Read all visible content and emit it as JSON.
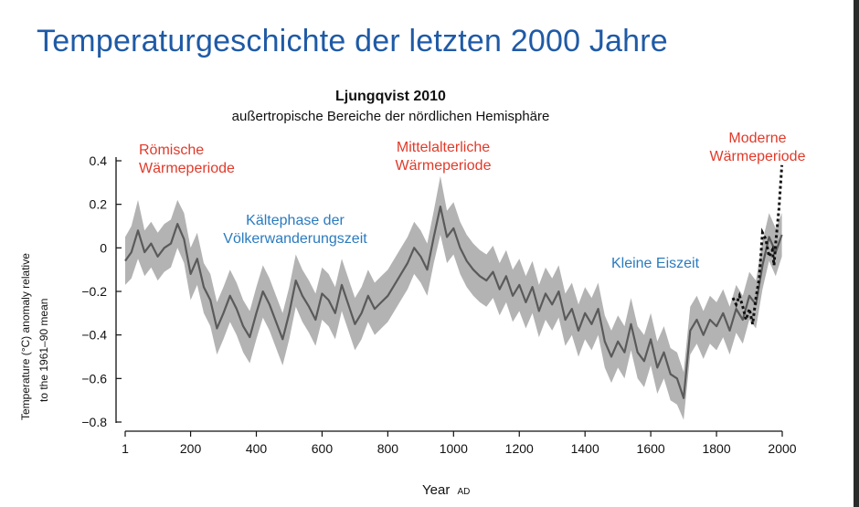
{
  "slide": {
    "title": "Temperaturgeschichte der letzten 2000 Jahre"
  },
  "colors": {
    "title": "#1f5aa6",
    "warm_label": "#e03a2a",
    "cold_label": "#2a7bbf",
    "band": "#b3b3b3",
    "line": "#5a5a5a",
    "instrumental": "#111111"
  },
  "chart_data": {
    "type": "line",
    "title": "Ljungqvist 2010",
    "subtitle": "außertropische Bereiche der nördlichen Hemisphäre",
    "xlabel": "Year",
    "xlabel_suffix": "AD",
    "ylabel_line1": "Temperature (°C) anomaly relative",
    "ylabel_line2": "to the 1961–90 mean",
    "xlim": [
      1,
      2000
    ],
    "ylim": [
      -0.8,
      0.4
    ],
    "x_ticks": [
      "1",
      "200",
      "400",
      "600",
      "800",
      "1000",
      "1200",
      "1400",
      "1600",
      "1800",
      "2000"
    ],
    "x_tick_values": [
      1,
      200,
      400,
      600,
      800,
      1000,
      1200,
      1400,
      1600,
      1800,
      2000
    ],
    "y_ticks": [
      "0.4",
      "0.2",
      "0",
      "−0.2",
      "−0.4",
      "−0.6",
      "−0.8"
    ],
    "y_tick_values": [
      0.4,
      0.2,
      0,
      -0.2,
      -0.4,
      -0.6,
      -0.8
    ],
    "series": [
      {
        "name": "Reconstruction (mean)",
        "x": [
          1,
          20,
          40,
          60,
          80,
          100,
          120,
          140,
          160,
          180,
          200,
          220,
          240,
          260,
          280,
          300,
          320,
          340,
          360,
          380,
          400,
          420,
          440,
          460,
          480,
          500,
          520,
          540,
          560,
          580,
          600,
          620,
          640,
          660,
          680,
          700,
          720,
          740,
          760,
          780,
          800,
          820,
          840,
          860,
          880,
          900,
          920,
          940,
          960,
          980,
          1000,
          1020,
          1040,
          1060,
          1080,
          1100,
          1120,
          1140,
          1160,
          1180,
          1200,
          1220,
          1240,
          1260,
          1280,
          1300,
          1320,
          1340,
          1360,
          1380,
          1400,
          1420,
          1440,
          1460,
          1480,
          1500,
          1520,
          1540,
          1560,
          1580,
          1600,
          1620,
          1640,
          1660,
          1680,
          1700,
          1720,
          1740,
          1760,
          1780,
          1800,
          1820,
          1840,
          1860,
          1880,
          1900,
          1920,
          1940,
          1960,
          1980,
          1999
        ],
        "values": [
          -0.06,
          -0.02,
          0.08,
          -0.02,
          0.02,
          -0.04,
          0.0,
          0.02,
          0.11,
          0.04,
          -0.12,
          -0.05,
          -0.18,
          -0.24,
          -0.37,
          -0.3,
          -0.22,
          -0.28,
          -0.36,
          -0.41,
          -0.3,
          -0.2,
          -0.26,
          -0.34,
          -0.42,
          -0.3,
          -0.15,
          -0.22,
          -0.27,
          -0.33,
          -0.21,
          -0.24,
          -0.3,
          -0.17,
          -0.26,
          -0.35,
          -0.3,
          -0.22,
          -0.28,
          -0.25,
          -0.22,
          -0.17,
          -0.12,
          -0.07,
          0.0,
          -0.04,
          -0.1,
          0.05,
          0.19,
          0.05,
          0.09,
          0.0,
          -0.06,
          -0.1,
          -0.13,
          -0.15,
          -0.11,
          -0.19,
          -0.13,
          -0.22,
          -0.17,
          -0.25,
          -0.18,
          -0.29,
          -0.21,
          -0.26,
          -0.2,
          -0.33,
          -0.28,
          -0.38,
          -0.3,
          -0.35,
          -0.28,
          -0.43,
          -0.5,
          -0.43,
          -0.48,
          -0.35,
          -0.48,
          -0.52,
          -0.42,
          -0.55,
          -0.48,
          -0.58,
          -0.6,
          -0.69,
          -0.38,
          -0.33,
          -0.4,
          -0.33,
          -0.36,
          -0.3,
          -0.38,
          -0.28,
          -0.33,
          -0.22,
          -0.26,
          -0.08,
          0.05,
          -0.02,
          0.06
        ]
      },
      {
        "name": "Uncertainty range (upper)",
        "values": [
          0.05,
          0.1,
          0.22,
          0.08,
          0.12,
          0.07,
          0.11,
          0.13,
          0.22,
          0.16,
          0.0,
          0.07,
          -0.07,
          -0.12,
          -0.25,
          -0.18,
          -0.1,
          -0.16,
          -0.24,
          -0.29,
          -0.18,
          -0.08,
          -0.14,
          -0.22,
          -0.3,
          -0.18,
          -0.03,
          -0.1,
          -0.15,
          -0.21,
          -0.09,
          -0.12,
          -0.18,
          -0.05,
          -0.14,
          -0.23,
          -0.18,
          -0.1,
          -0.16,
          -0.13,
          -0.1,
          -0.05,
          0.0,
          0.05,
          0.12,
          0.08,
          0.02,
          0.17,
          0.33,
          0.17,
          0.21,
          0.12,
          0.06,
          0.02,
          -0.01,
          -0.03,
          0.01,
          -0.07,
          -0.01,
          -0.1,
          -0.05,
          -0.13,
          -0.06,
          -0.17,
          -0.09,
          -0.14,
          -0.08,
          -0.21,
          -0.16,
          -0.26,
          -0.18,
          -0.23,
          -0.16,
          -0.31,
          -0.38,
          -0.31,
          -0.36,
          -0.23,
          -0.36,
          -0.4,
          -0.3,
          -0.43,
          -0.36,
          -0.46,
          -0.48,
          -0.57,
          -0.27,
          -0.22,
          -0.29,
          -0.22,
          -0.25,
          -0.19,
          -0.27,
          -0.17,
          -0.22,
          -0.11,
          -0.15,
          0.03,
          0.16,
          0.09,
          0.16
        ]
      },
      {
        "name": "Uncertainty range (lower)",
        "values": [
          -0.17,
          -0.14,
          -0.05,
          -0.13,
          -0.09,
          -0.15,
          -0.11,
          -0.09,
          0.0,
          -0.07,
          -0.24,
          -0.17,
          -0.3,
          -0.36,
          -0.49,
          -0.42,
          -0.34,
          -0.4,
          -0.48,
          -0.53,
          -0.42,
          -0.32,
          -0.38,
          -0.46,
          -0.54,
          -0.42,
          -0.27,
          -0.34,
          -0.39,
          -0.45,
          -0.33,
          -0.36,
          -0.42,
          -0.29,
          -0.38,
          -0.47,
          -0.42,
          -0.34,
          -0.4,
          -0.37,
          -0.34,
          -0.29,
          -0.24,
          -0.19,
          -0.12,
          -0.16,
          -0.22,
          -0.07,
          0.06,
          -0.07,
          -0.03,
          -0.12,
          -0.18,
          -0.22,
          -0.25,
          -0.27,
          -0.23,
          -0.31,
          -0.25,
          -0.34,
          -0.29,
          -0.37,
          -0.3,
          -0.41,
          -0.33,
          -0.38,
          -0.32,
          -0.45,
          -0.4,
          -0.5,
          -0.42,
          -0.47,
          -0.4,
          -0.55,
          -0.62,
          -0.55,
          -0.6,
          -0.47,
          -0.6,
          -0.64,
          -0.54,
          -0.67,
          -0.6,
          -0.7,
          -0.72,
          -0.79,
          -0.49,
          -0.44,
          -0.51,
          -0.44,
          -0.47,
          -0.41,
          -0.49,
          -0.39,
          -0.44,
          -0.33,
          -0.37,
          -0.19,
          -0.06,
          -0.13,
          -0.04
        ]
      },
      {
        "name": "Instrumental record",
        "style": "dotted",
        "x": [
          1850,
          1860,
          1870,
          1880,
          1890,
          1900,
          1910,
          1915,
          1920,
          1930,
          1940,
          1950,
          1960,
          1970,
          1975,
          1980,
          1990,
          1999
        ],
        "values": [
          -0.23,
          -0.26,
          -0.22,
          -0.27,
          -0.33,
          -0.28,
          -0.35,
          -0.29,
          -0.23,
          -0.14,
          0.07,
          0.04,
          -0.04,
          -0.01,
          -0.08,
          0.02,
          0.18,
          0.38
        ]
      }
    ],
    "annotations": [
      {
        "id": "roman",
        "line1": "Römische",
        "line2": "Wärmeperiode",
        "kind": "warm"
      },
      {
        "id": "migration",
        "line1": "Kältephase der",
        "line2": "Völkerwanderungszeit",
        "kind": "cold"
      },
      {
        "id": "medieval",
        "line1": "Mittelalterliche",
        "line2": "Wärmeperiode",
        "kind": "warm"
      },
      {
        "id": "little-ice-age",
        "line1": "Kleine Eiszeit",
        "line2": "",
        "kind": "cold"
      },
      {
        "id": "modern",
        "line1": "Moderne",
        "line2": "Wärmeperiode",
        "kind": "warm"
      }
    ]
  }
}
